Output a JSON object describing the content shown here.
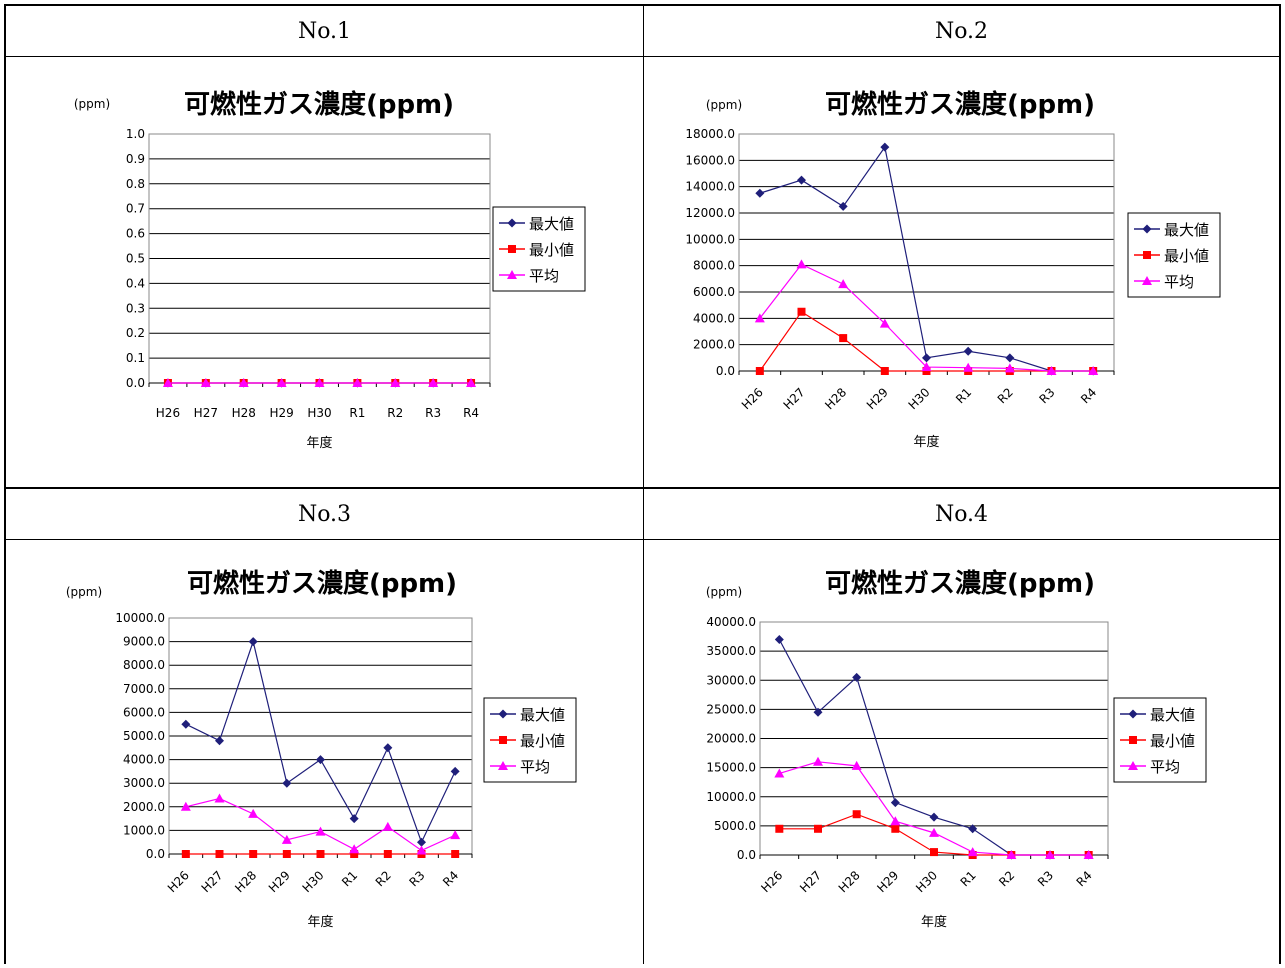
{
  "table": {
    "headers": [
      "No.1",
      "No.2",
      "No.3",
      "No.4"
    ]
  },
  "chart_data": [
    {
      "type": "line",
      "title": "可燃性ガス濃度(ppm)",
      "ylabel": "(ppm)",
      "xlabel": "年度",
      "categories": [
        "H26",
        "H27",
        "H28",
        "H29",
        "H30",
        "R1",
        "R2",
        "R3",
        "R4"
      ],
      "ylim": [
        0,
        1.0
      ],
      "ystep": 0.1,
      "ydecimals": 1,
      "xlabels_rotated": false,
      "legend_position": "right",
      "grid": true,
      "series": [
        {
          "name": "最大値",
          "color": "#1F1F7A",
          "marker": "diamond",
          "values": [
            0,
            0,
            0,
            0,
            0,
            0,
            0,
            0,
            0
          ]
        },
        {
          "name": "最小値",
          "color": "#FF0000",
          "marker": "square",
          "values": [
            0,
            0,
            0,
            0,
            0,
            0,
            0,
            0,
            0
          ]
        },
        {
          "name": "平均",
          "color": "#FF00FF",
          "marker": "triangle",
          "values": [
            0,
            0,
            0,
            0,
            0,
            0,
            0,
            0,
            0
          ]
        }
      ]
    },
    {
      "type": "line",
      "title": "可燃性ガス濃度(ppm)",
      "ylabel": "(ppm)",
      "xlabel": "年度",
      "categories": [
        "H26",
        "H27",
        "H28",
        "H29",
        "H30",
        "R1",
        "R2",
        "R3",
        "R4"
      ],
      "ylim": [
        0,
        18000
      ],
      "ystep": 2000,
      "ydecimals": 1,
      "xlabels_rotated": true,
      "legend_position": "right",
      "grid": true,
      "series": [
        {
          "name": "最大値",
          "color": "#1F1F7A",
          "marker": "diamond",
          "values": [
            13500,
            14500,
            12500,
            17000,
            1000,
            1500,
            1000,
            0,
            0
          ]
        },
        {
          "name": "最小値",
          "color": "#FF0000",
          "marker": "square",
          "values": [
            0,
            4500,
            2500,
            0,
            0,
            0,
            0,
            0,
            0
          ]
        },
        {
          "name": "平均",
          "color": "#FF00FF",
          "marker": "triangle",
          "values": [
            4000,
            8100,
            6600,
            3600,
            300,
            250,
            200,
            0,
            0
          ]
        }
      ]
    },
    {
      "type": "line",
      "title": "可燃性ガス濃度(ppm)",
      "ylabel": "(ppm)",
      "xlabel": "年度",
      "categories": [
        "H26",
        "H27",
        "H28",
        "H29",
        "H30",
        "R1",
        "R2",
        "R3",
        "R4"
      ],
      "ylim": [
        0,
        10000
      ],
      "ystep": 1000,
      "ydecimals": 1,
      "xlabels_rotated": true,
      "legend_position": "right",
      "grid": true,
      "series": [
        {
          "name": "最大値",
          "color": "#1F1F7A",
          "marker": "diamond",
          "values": [
            5500,
            4800,
            9000,
            3000,
            4000,
            1500,
            4500,
            500,
            3500
          ]
        },
        {
          "name": "最小値",
          "color": "#FF0000",
          "marker": "square",
          "values": [
            0,
            0,
            0,
            0,
            0,
            0,
            0,
            0,
            0
          ]
        },
        {
          "name": "平均",
          "color": "#FF00FF",
          "marker": "triangle",
          "values": [
            2000,
            2350,
            1700,
            600,
            950,
            200,
            1150,
            150,
            800
          ]
        }
      ]
    },
    {
      "type": "line",
      "title": "可燃性ガス濃度(ppm)",
      "ylabel": "(ppm)",
      "xlabel": "年度",
      "categories": [
        "H26",
        "H27",
        "H28",
        "H29",
        "H30",
        "R1",
        "R2",
        "R3",
        "R4"
      ],
      "ylim": [
        0,
        40000
      ],
      "ystep": 5000,
      "ydecimals": 1,
      "xlabels_rotated": true,
      "legend_position": "right",
      "grid": true,
      "series": [
        {
          "name": "最大値",
          "color": "#1F1F7A",
          "marker": "diamond",
          "values": [
            37000,
            24500,
            30500,
            9000,
            6500,
            4500,
            0,
            0,
            0
          ]
        },
        {
          "name": "最小値",
          "color": "#FF0000",
          "marker": "square",
          "values": [
            4500,
            4500,
            7000,
            4500,
            500,
            0,
            0,
            0,
            0
          ]
        },
        {
          "name": "平均",
          "color": "#FF00FF",
          "marker": "triangle",
          "values": [
            14000,
            16000,
            15300,
            5800,
            3800,
            500,
            0,
            0,
            0
          ]
        }
      ]
    }
  ]
}
